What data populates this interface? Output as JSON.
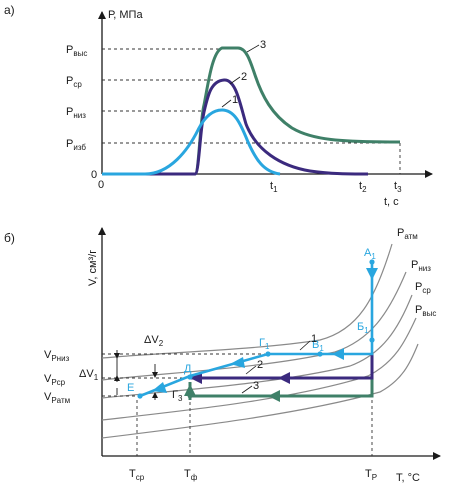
{
  "panel_a": {
    "label": "а)",
    "y_axis_label": "Р, МПа",
    "x_axis_label": "t, с",
    "origin_y": "0",
    "origin_x": "0",
    "pressure_levels": {
      "high": {
        "main": "Р",
        "sub": "выс"
      },
      "mid": {
        "main": "Р",
        "sub": "ср"
      },
      "low": {
        "main": "Р",
        "sub": "низ"
      },
      "excess": {
        "main": "Р",
        "sub": "изб"
      }
    },
    "time_ticks": [
      {
        "main": "t",
        "sub": "1"
      },
      {
        "main": "t",
        "sub": "2"
      },
      {
        "main": "t",
        "sub": "3"
      }
    ],
    "curve_labels": [
      "1",
      "2",
      "3"
    ]
  },
  "panel_b": {
    "label": "б)",
    "y_axis_label": "V, см³/г",
    "x_axis_label": "Т, °С",
    "isobar_labels": [
      {
        "main": "Р",
        "sub": "атм"
      },
      {
        "main": "Р",
        "sub": "низ"
      },
      {
        "main": "Р",
        "sub": "ср"
      },
      {
        "main": "Р",
        "sub": "выс"
      }
    ],
    "volume_ticks": [
      {
        "main": "V",
        "sub": "Pниз"
      },
      {
        "main": "V",
        "sub": "Pср"
      },
      {
        "main": "V",
        "sub": "Pатм"
      }
    ],
    "temperature_ticks": [
      {
        "main": "Т",
        "sub": "ср"
      },
      {
        "main": "Т",
        "sub": "ф"
      },
      {
        "main": "Т",
        "sub": "Р"
      }
    ],
    "delta_labels": [
      {
        "main": "ΔV",
        "sub": "2"
      },
      {
        "main": "ΔV",
        "sub": "1"
      }
    ],
    "points": {
      "A1": {
        "main": "А",
        "sub": "1"
      },
      "B1": {
        "main": "Б",
        "sub": "1"
      },
      "V1": {
        "main": "В",
        "sub": "1"
      },
      "G1": {
        "main": "Г",
        "sub": "1"
      },
      "G3": {
        "main": "Г",
        "sub": "3"
      },
      "D": {
        "main": "Д",
        "sub": ""
      },
      "E": {
        "main": "Е",
        "sub": ""
      }
    },
    "path_labels": [
      "1",
      "2",
      "3"
    ]
  },
  "colors": {
    "curve_1": "#29a6df",
    "curve_2": "#3b2a7e",
    "curve_3": "#3f8068",
    "isobars": "#8a8a8a",
    "axis": "#1a1a1a"
  }
}
